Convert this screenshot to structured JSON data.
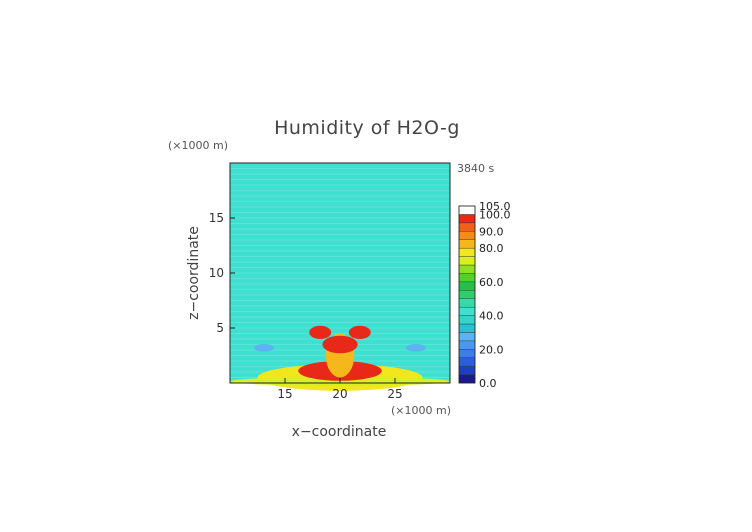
{
  "chart_data": {
    "type": "heatmap",
    "title": "Humidity of H2O-g",
    "xlabel": "x−coordinate",
    "ylabel": "z−coordinate",
    "x_unit": "(×1000 m)",
    "y_unit": "(×1000 m)",
    "time_label": "3840 s",
    "xlim": [
      10,
      30
    ],
    "ylim": [
      0,
      20
    ],
    "x_ticks": [
      "15",
      "20",
      "25"
    ],
    "y_ticks": [
      "5",
      "10",
      "15"
    ],
    "background_value": 42,
    "features": [
      {
        "shape": "ellipse",
        "cx": 20.0,
        "cz": 0.5,
        "rx": 7.5,
        "rz": 1.2,
        "value": 75
      },
      {
        "shape": "ellipse",
        "cx": 20.0,
        "cz": 0.15,
        "rx": 10.0,
        "rz": 0.4,
        "value": 70
      },
      {
        "shape": "ellipse",
        "cx": 20.0,
        "cz": 1.1,
        "rx": 3.8,
        "rz": 0.9,
        "value": 98
      },
      {
        "shape": "ellipse",
        "cx": 20.0,
        "cz": 2.5,
        "rx": 1.3,
        "rz": 2.0,
        "value": 80
      },
      {
        "shape": "ellipse",
        "cx": 20.0,
        "cz": 3.5,
        "rx": 1.6,
        "rz": 0.8,
        "value": 95
      },
      {
        "shape": "ellipse",
        "cx": 18.2,
        "cz": 4.6,
        "rx": 1.0,
        "rz": 0.6,
        "value": 95
      },
      {
        "shape": "ellipse",
        "cx": 21.8,
        "cz": 4.6,
        "rx": 1.0,
        "rz": 0.6,
        "value": 95
      },
      {
        "shape": "ellipse",
        "cx": 13.1,
        "cz": 3.2,
        "rx": 0.9,
        "rz": 0.35,
        "value": 25
      },
      {
        "shape": "ellipse",
        "cx": 26.9,
        "cz": 3.2,
        "rx": 0.9,
        "rz": 0.35,
        "value": 25
      }
    ],
    "colorbar": {
      "labels": [
        "105.0",
        "100.0",
        "90.0",
        "80.0",
        "60.0",
        "40.0",
        "20.0",
        "0.0"
      ],
      "levels": [
        0,
        5,
        10,
        15,
        20,
        25,
        30,
        35,
        40,
        45,
        50,
        55,
        60,
        65,
        70,
        75,
        80,
        85,
        90,
        95,
        100,
        105
      ],
      "colors": [
        "#1a1a8c",
        "#1f3fbf",
        "#2b5fd9",
        "#3a7ee6",
        "#4a99ee",
        "#5bb3f2",
        "#27c0d8",
        "#35d4c8",
        "#40e0d0",
        "#38d9a8",
        "#2ccf6e",
        "#22c24a",
        "#4fd12e",
        "#8ee020",
        "#d8f020",
        "#f2e61c",
        "#f5b81a",
        "#f58c18",
        "#f06018",
        "#e82818",
        "#ffffff"
      ]
    }
  }
}
